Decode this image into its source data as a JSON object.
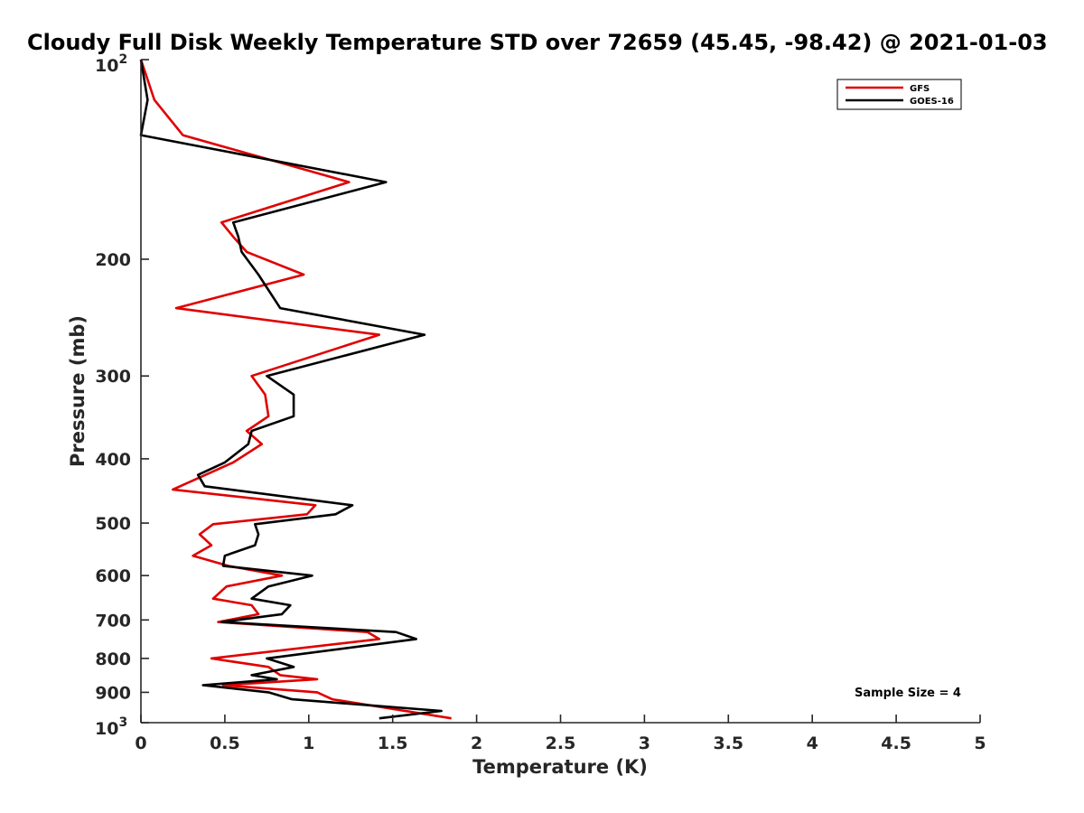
{
  "chart_data": {
    "type": "line",
    "title": "Cloudy Full Disk Weekly Temperature STD over 72659 (45.45, -98.42) @ 2021-01-03",
    "xlabel": "Temperature (K)",
    "ylabel": "Pressure (mb)",
    "xlim": [
      0,
      5
    ],
    "ylim": [
      100,
      1000
    ],
    "y_scale": "log",
    "y_reversed": true,
    "grid": false,
    "legend_position": "top-right",
    "x_ticks": [
      0,
      0.5,
      1,
      1.5,
      2,
      2.5,
      3,
      3.5,
      4,
      4.5,
      5
    ],
    "x_tick_labels": [
      "0",
      "0.5",
      "1",
      "1.5",
      "2",
      "2.5",
      "3",
      "3.5",
      "4",
      "4.5",
      "5"
    ],
    "y_ticks": [
      {
        "value": 100,
        "base": "10",
        "exp": "2"
      },
      {
        "value": 200,
        "label": "200"
      },
      {
        "value": 300,
        "label": "300"
      },
      {
        "value": 400,
        "label": "400"
      },
      {
        "value": 500,
        "label": "500"
      },
      {
        "value": 600,
        "label": "600"
      },
      {
        "value": 700,
        "label": "700"
      },
      {
        "value": 800,
        "label": "800"
      },
      {
        "value": 900,
        "label": "900"
      },
      {
        "value": 1000,
        "base": "10",
        "exp": "3"
      }
    ],
    "series": [
      {
        "name": "GFS",
        "color": "#e00000",
        "points": [
          [
            0.0,
            100
          ],
          [
            0.08,
            115
          ],
          [
            0.25,
            130
          ],
          [
            1.24,
            153
          ],
          [
            0.48,
            176
          ],
          [
            0.55,
            185
          ],
          [
            0.63,
            195
          ],
          [
            0.97,
            211
          ],
          [
            0.21,
            237
          ],
          [
            1.42,
            260
          ],
          [
            0.66,
            300
          ],
          [
            0.74,
            320
          ],
          [
            0.76,
            345
          ],
          [
            0.63,
            363
          ],
          [
            0.72,
            380
          ],
          [
            0.55,
            405
          ],
          [
            0.19,
            445
          ],
          [
            1.04,
            470
          ],
          [
            0.99,
            485
          ],
          [
            0.43,
            502
          ],
          [
            0.35,
            520
          ],
          [
            0.42,
            540
          ],
          [
            0.31,
            560
          ],
          [
            0.52,
            580
          ],
          [
            0.84,
            600
          ],
          [
            0.51,
            623
          ],
          [
            0.43,
            650
          ],
          [
            0.66,
            665
          ],
          [
            0.7,
            686
          ],
          [
            0.46,
            705
          ],
          [
            1.35,
            730
          ],
          [
            1.42,
            748
          ],
          [
            0.42,
            800
          ],
          [
            0.76,
            824
          ],
          [
            0.83,
            848
          ],
          [
            1.05,
            860
          ],
          [
            0.49,
            878
          ],
          [
            1.05,
            900
          ],
          [
            1.14,
            922
          ],
          [
            1.85,
            985
          ]
        ]
      },
      {
        "name": "GOES-16",
        "color": "#000000",
        "points": [
          [
            0.0,
            100
          ],
          [
            0.04,
            115
          ],
          [
            0.0,
            130
          ],
          [
            1.46,
            153
          ],
          [
            0.55,
            176
          ],
          [
            0.58,
            185
          ],
          [
            0.6,
            195
          ],
          [
            0.7,
            211
          ],
          [
            0.83,
            237
          ],
          [
            1.69,
            260
          ],
          [
            0.75,
            300
          ],
          [
            0.91,
            320
          ],
          [
            0.91,
            345
          ],
          [
            0.66,
            363
          ],
          [
            0.64,
            380
          ],
          [
            0.5,
            405
          ],
          [
            0.34,
            423
          ],
          [
            0.38,
            440
          ],
          [
            1.26,
            470
          ],
          [
            1.16,
            485
          ],
          [
            0.68,
            502
          ],
          [
            0.7,
            520
          ],
          [
            0.68,
            540
          ],
          [
            0.5,
            560
          ],
          [
            0.49,
            580
          ],
          [
            1.02,
            600
          ],
          [
            0.76,
            623
          ],
          [
            0.66,
            650
          ],
          [
            0.89,
            665
          ],
          [
            0.84,
            686
          ],
          [
            0.48,
            705
          ],
          [
            1.52,
            730
          ],
          [
            1.64,
            748
          ],
          [
            0.75,
            800
          ],
          [
            0.91,
            824
          ],
          [
            0.66,
            848
          ],
          [
            0.81,
            860
          ],
          [
            0.37,
            878
          ],
          [
            0.76,
            900
          ],
          [
            0.9,
            922
          ],
          [
            1.79,
            960
          ],
          [
            1.42,
            985
          ]
        ]
      }
    ],
    "annotation": "Sample Size = 4"
  }
}
